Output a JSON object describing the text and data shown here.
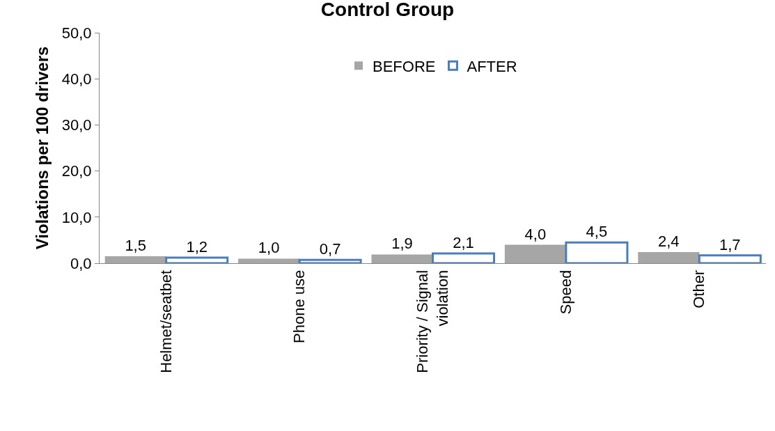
{
  "chart_data": {
    "type": "bar",
    "title": "Control Group",
    "ylabel": "Violations per 100 drivers",
    "categories": [
      "Helmet/seatbet",
      "Phone use",
      "Priority / Signal violation",
      "Speed",
      "Other"
    ],
    "series": [
      {
        "name": "BEFORE",
        "color": "#a6a6a6",
        "values": [
          1.5,
          1.0,
          1.9,
          4.0,
          2.4
        ],
        "value_labels": [
          "1,5",
          "1,0",
          "1,9",
          "4,0",
          "2,4"
        ]
      },
      {
        "name": "AFTER",
        "color": "#4a7ebb",
        "values": [
          1.2,
          0.7,
          2.1,
          4.5,
          1.7
        ],
        "value_labels": [
          "1,2",
          "0,7",
          "2,1",
          "4,5",
          "1,7"
        ]
      }
    ],
    "ylim": [
      0,
      50
    ],
    "yticks": [
      {
        "value": 0,
        "label": "0,0"
      },
      {
        "value": 10,
        "label": "10,0"
      },
      {
        "value": 20,
        "label": "20,0"
      },
      {
        "value": 30,
        "label": "30,0"
      },
      {
        "value": 40,
        "label": "40,0"
      },
      {
        "value": 50,
        "label": "50,0"
      }
    ],
    "legend": "top"
  }
}
